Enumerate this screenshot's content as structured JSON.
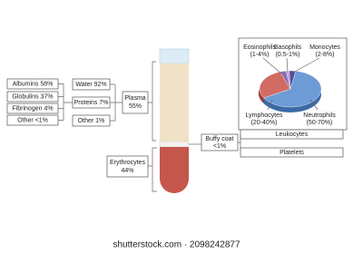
{
  "proteins": [
    "Albumins 58%",
    "Globulins 37%",
    "Fibrinogen 4%",
    "Other <1%"
  ],
  "plasma_parts": [
    "Water 92%",
    "Proteins 7%",
    "Other 1%"
  ],
  "plasma": [
    "Plasma",
    "55%"
  ],
  "erythrocytes": [
    "Erythrocytes",
    "44%"
  ],
  "buffy_coat": [
    "Buffy coat",
    "<1%"
  ],
  "leukocytes": {
    "title": "Leukocytes",
    "types": [
      {
        "name": "Eosinophils",
        "range": "(1-4%)"
      },
      {
        "name": "Basophils",
        "range": "(0.5-1%)"
      },
      {
        "name": "Monocytes",
        "range": "(2-8%)"
      },
      {
        "name": "Lymphocytes",
        "range": "(20-40%)"
      },
      {
        "name": "Neutrophils",
        "range": "(50-70%)"
      }
    ]
  },
  "platelets": "Platelets",
  "watermark": "shutterstock.com · 2098242877"
}
